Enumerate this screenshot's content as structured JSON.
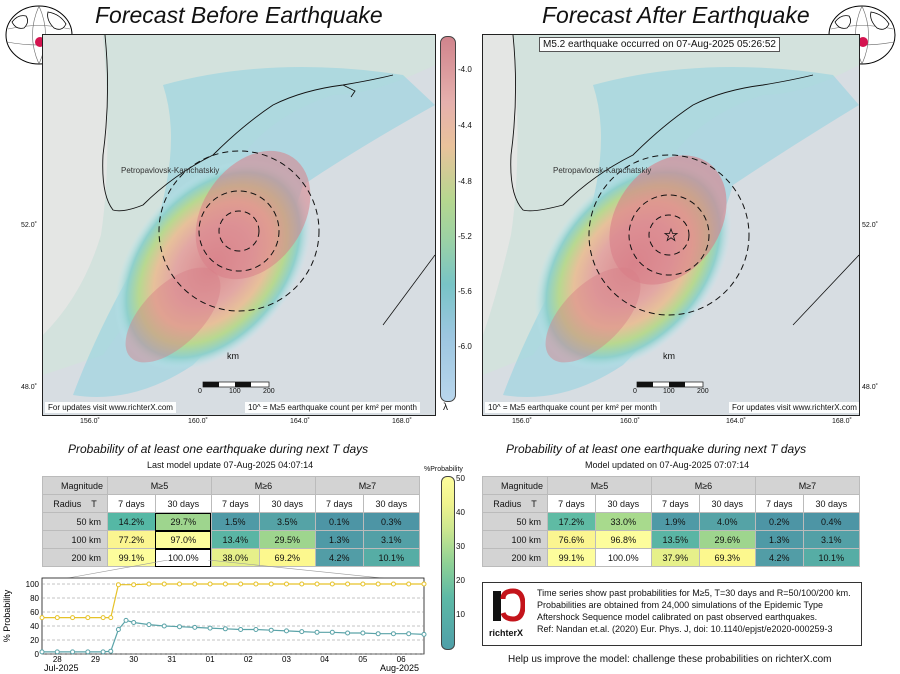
{
  "left_panel": {
    "title": "Forecast Before Earthquake",
    "city_label": "Petropavlovsk-Kamchatskiy",
    "km_label": "km",
    "scale_ticks": [
      "0",
      "100",
      "200"
    ],
    "updates_note": "For updates visit www.richterX.com",
    "lambda_note": "10^ = M≥5 earthquake count per km² per month",
    "lat_labels": [
      "52.0˚",
      "48.0˚"
    ],
    "lon_labels": [
      "156.0˚",
      "160.0˚",
      "164.0˚",
      "168.0˚"
    ]
  },
  "right_panel": {
    "title": "Forecast After Earthquake",
    "event_banner": "M5.2 earthquake occurred on 07-Aug-2025 05:26:52",
    "city_label": "Petropavlovsk-Kamchatskiy",
    "km_label": "km",
    "scale_ticks": [
      "0",
      "100",
      "200"
    ],
    "updates_note": "For updates visit www.richterX.com",
    "lambda_note": "10^ = M≥5 earthquake count per km² per month",
    "lat_labels": [
      "52.0˚",
      "48.0˚"
    ],
    "lon_labels": [
      "156.0˚",
      "160.0˚",
      "164.0˚",
      "168.0˚"
    ]
  },
  "colorbar": {
    "ticks": [
      "-4.0",
      "-4.4",
      "-4.8",
      "-5.2",
      "-5.6",
      "-6.0"
    ],
    "symbol": "λ"
  },
  "prob_colorbar": {
    "label": "%Probability",
    "ticks": [
      "50",
      "40",
      "30",
      "20",
      "10"
    ]
  },
  "left_table": {
    "heading": "Probability of at least one earthquake during next T days",
    "update_note": "Last model update 07-Aug-2025 04:07:14",
    "magnitude_label": "Magnitude",
    "radius_label": "Radius",
    "t_label": "T",
    "magnitudes": [
      "M≥5",
      "M≥6",
      "M≥7"
    ],
    "periods": [
      "7 days",
      "30 days",
      "7 days",
      "30 days",
      "7 days",
      "30 days"
    ],
    "rows": [
      {
        "radius": "50 km",
        "values": [
          "14.2%",
          "29.7%",
          "1.5%",
          "3.5%",
          "0.1%",
          "0.3%"
        ]
      },
      {
        "radius": "100 km",
        "values": [
          "77.2%",
          "97.0%",
          "13.4%",
          "29.5%",
          "1.3%",
          "3.1%"
        ]
      },
      {
        "radius": "200 km",
        "values": [
          "99.1%",
          "100.0%",
          "38.0%",
          "69.2%",
          "4.2%",
          "10.1%"
        ]
      }
    ],
    "cell_colors": [
      [
        "#55b8a5",
        "#9ed58e",
        "#4f9aa6",
        "#55a3a6",
        "#4d95a5",
        "#4d95a5"
      ],
      [
        "#fbf590",
        "#fdfd9c",
        "#5ab5a4",
        "#9ed58e",
        "#4f9aa6",
        "#53a0a6"
      ],
      [
        "#fdfd9c",
        "#ffffff",
        "#e6f08a",
        "#fcf88e",
        "#529da6",
        "#56ada5"
      ]
    ]
  },
  "right_table": {
    "heading": "Probability of at least one earthquake during next T days",
    "update_note": "Model updated on 07-Aug-2025 07:07:14",
    "magnitude_label": "Magnitude",
    "radius_label": "Radius",
    "t_label": "T",
    "magnitudes": [
      "M≥5",
      "M≥6",
      "M≥7"
    ],
    "periods": [
      "7 days",
      "30 days",
      "7 days",
      "30 days",
      "7 days",
      "30 days"
    ],
    "rows": [
      {
        "radius": "50 km",
        "values": [
          "17.2%",
          "33.0%",
          "1.9%",
          "4.0%",
          "0.2%",
          "0.4%"
        ]
      },
      {
        "radius": "100 km",
        "values": [
          "76.6%",
          "96.8%",
          "13.5%",
          "29.6%",
          "1.3%",
          "3.1%"
        ]
      },
      {
        "radius": "200 km",
        "values": [
          "99.1%",
          "100.0%",
          "37.9%",
          "69.3%",
          "4.2%",
          "10.1%"
        ]
      }
    ],
    "cell_colors": [
      [
        "#5fbba4",
        "#a8da8d",
        "#4f9aa6",
        "#55a3a6",
        "#4d95a5",
        "#4d95a5"
      ],
      [
        "#fbf590",
        "#fdfd9c",
        "#5ab5a4",
        "#9ed58e",
        "#4f9aa6",
        "#53a0a6"
      ],
      [
        "#fdfd9c",
        "#ffffff",
        "#e6f08a",
        "#fcf88e",
        "#529da6",
        "#56ada5"
      ]
    ]
  },
  "chart_data": {
    "type": "line",
    "ylabel": "% Probability",
    "ylim": [
      0,
      100
    ],
    "yticks": [
      0,
      20,
      40,
      60,
      80,
      100
    ],
    "xtick_labels": [
      "28",
      "29",
      "30",
      "31",
      "01",
      "02",
      "03",
      "04",
      "05",
      "06"
    ],
    "month_labels": [
      "Jul-2025",
      "Aug-2025"
    ],
    "grid": true,
    "series": [
      {
        "color": "#e6c229",
        "x": [
          27.6,
          28.0,
          28.4,
          28.8,
          29.2,
          29.4,
          29.6,
          30.0,
          30.4,
          30.8,
          31.2,
          31.6,
          32.0,
          32.4,
          32.8,
          33.2,
          33.6,
          34.0,
          34.4,
          34.8,
          35.2,
          35.6,
          36.0,
          36.4,
          36.8,
          37.2,
          37.6
        ],
        "values": [
          52,
          52,
          52,
          52,
          52,
          52,
          99,
          99,
          100,
          100,
          100,
          100,
          100,
          100,
          100,
          100,
          100,
          100,
          100,
          100,
          100,
          100,
          100,
          100,
          100,
          100,
          100
        ]
      },
      {
        "color": "#5aa3a8",
        "x": [
          27.6,
          28.0,
          28.4,
          28.8,
          29.2,
          29.4,
          29.6,
          29.8,
          30.0,
          30.4,
          30.8,
          31.2,
          31.6,
          32.0,
          32.4,
          32.8,
          33.2,
          33.6,
          34.0,
          34.4,
          34.8,
          35.2,
          35.6,
          36.0,
          36.4,
          36.8,
          37.2,
          37.6
        ],
        "values": [
          3,
          3,
          3,
          3,
          3,
          4,
          35,
          48,
          45,
          42,
          40,
          39,
          38,
          37,
          36,
          35,
          35,
          34,
          33,
          32,
          31,
          31,
          30,
          30,
          29,
          29,
          29,
          28
        ]
      }
    ]
  },
  "info": {
    "lines": [
      "Time series show past probabilities for M≥5, T=30 days and R=50/100/200 km.",
      "Probabilities are obtained from 24,000 simulations of the Epidemic Type",
      "Aftershock Sequence model calibrated on past observed earthquakes.",
      "Ref: Nandan et.al. (2020) Eur. Phys. J, doi: 10.1140/epjst/e2020-000259-3"
    ],
    "logo_text": "richterX",
    "help_text": "Help us improve the model: challenge these probabilities on richterX.com"
  }
}
